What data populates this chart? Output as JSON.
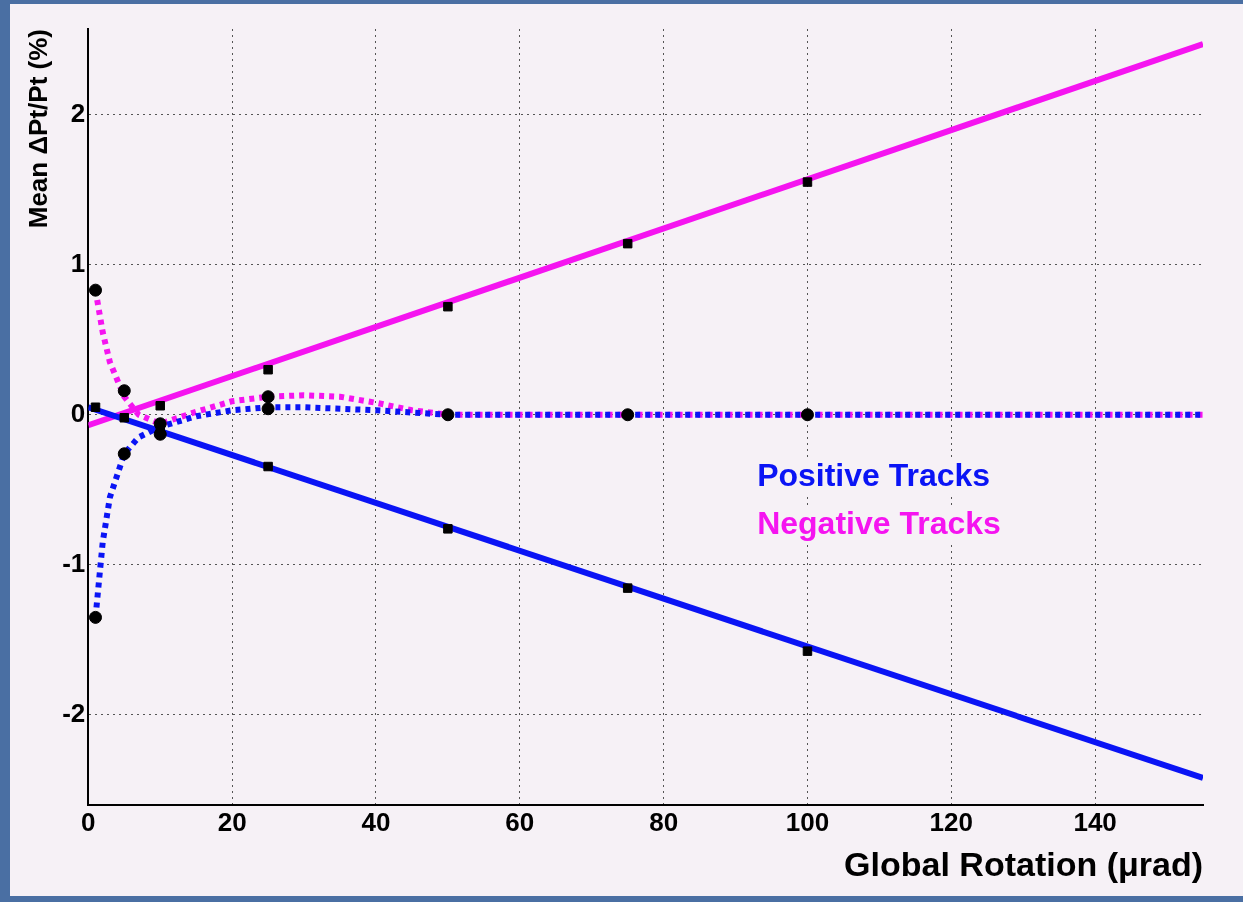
{
  "chart_data": {
    "type": "line",
    "xlabel": "Global Rotation (μrad)",
    "ylabel": "Mean ΔPt/Pt (%)",
    "xlim": [
      0,
      155
    ],
    "ylim": [
      -2.6,
      2.57
    ],
    "xticks": [
      0,
      20,
      40,
      60,
      80,
      100,
      120,
      140
    ],
    "yticks": [
      -2,
      -1,
      0,
      1,
      2
    ],
    "grid": true,
    "legend": "right",
    "series": [
      {
        "name": "Positive Tracks",
        "type": "line",
        "color": "#0a14f5",
        "line_style": "solid",
        "marker": "none",
        "x": [
          0,
          155
        ],
        "values": [
          0.05,
          -2.42
        ]
      },
      {
        "name": "Negative Tracks",
        "type": "line",
        "color": "#f514f0",
        "line_style": "solid",
        "marker": "none",
        "x": [
          0,
          155
        ],
        "values": [
          -0.07,
          2.47
        ]
      },
      {
        "type": "line",
        "color": "#0a14f5",
        "line_style": "dotted",
        "marker": "none",
        "x": [
          1,
          2,
          3,
          5,
          7,
          10,
          15,
          20,
          25,
          30,
          40,
          50,
          75,
          100,
          155
        ],
        "values": [
          -1.35,
          -0.85,
          -0.55,
          -0.26,
          -0.15,
          -0.08,
          -0.01,
          0.03,
          0.05,
          0.05,
          0.03,
          0,
          0,
          0,
          0
        ]
      },
      {
        "type": "line",
        "color": "#f514f0",
        "line_style": "dotted",
        "marker": "none",
        "x": [
          1,
          2,
          3,
          5,
          7,
          10,
          15,
          20,
          25,
          30,
          35,
          40,
          45,
          50,
          155
        ],
        "values": [
          0.83,
          0.55,
          0.35,
          0.12,
          0,
          -0.06,
          0.02,
          0.09,
          0.12,
          0.13,
          0.12,
          0.08,
          0.03,
          0,
          0
        ]
      },
      {
        "type": "scatter",
        "color": "#000000",
        "marker": "square",
        "x": [
          1,
          10,
          25,
          50,
          75,
          100
        ],
        "values": [
          0.05,
          -0.1,
          -0.345,
          -0.76,
          -1.155,
          -1.575
        ]
      },
      {
        "type": "scatter",
        "color": "#000000",
        "marker": "square",
        "x": [
          5,
          10,
          25,
          50,
          75,
          100
        ],
        "values": [
          -0.02,
          0.06,
          0.3,
          0.72,
          1.14,
          1.55
        ]
      },
      {
        "type": "scatter",
        "color": "#000000",
        "marker": "circle",
        "x": [
          1,
          1,
          5,
          5,
          10,
          10,
          25,
          25,
          50,
          75,
          100
        ],
        "values": [
          0.83,
          -1.35,
          0.16,
          -0.26,
          -0.06,
          -0.13,
          0.12,
          0.04,
          0,
          0,
          0
        ]
      }
    ]
  }
}
